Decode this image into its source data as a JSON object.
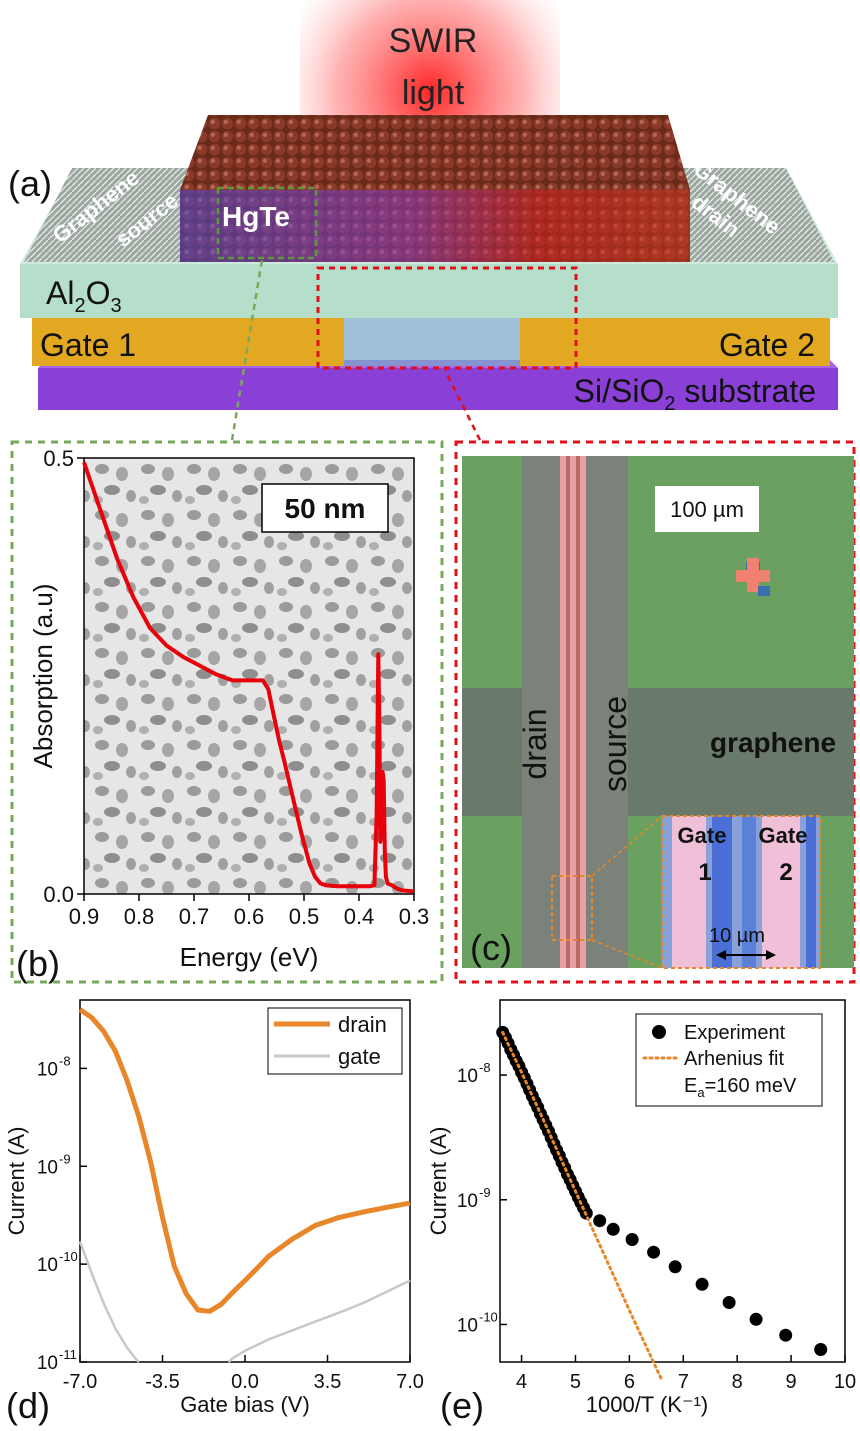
{
  "panel_a": {
    "label": "(a)",
    "light_line1": "SWIR",
    "light_line2": "light",
    "material": "HgTe",
    "graphene_source_1": "Graphene",
    "graphene_source_2": "source",
    "graphene_drain_1": "Graphene",
    "graphene_drain_2": "drain",
    "oxide_main": "Al",
    "oxide_sub1": "2",
    "oxide_mid": "O",
    "oxide_sub2": "3",
    "gate1": "Gate 1",
    "gate2": "Gate 2",
    "substrate_main": "Si/SiO",
    "substrate_sub": "2",
    "substrate_rest": " substrate",
    "colors": {
      "gate": "#e3a822",
      "substrate": "#8a3fd6",
      "oxide": "#a8d8c2",
      "light": "#ff2a2a"
    }
  },
  "panel_b": {
    "label": "(b)",
    "scale_bar": "50 nm",
    "chart_data": {
      "type": "line",
      "xlabel": "Energy (eV)",
      "ylabel": "Absorption (a.u)",
      "xlim": [
        0.9,
        0.3
      ],
      "ylim": [
        0.0,
        0.5
      ],
      "xticks": [
        "0.9",
        "0.8",
        "0.7",
        "0.6",
        "0.5",
        "0.4",
        "0.3"
      ],
      "yticks": [
        "0.0",
        "0.5"
      ],
      "series": [
        {
          "color": "#e8000b",
          "x": [
            0.9,
            0.87,
            0.84,
            0.81,
            0.78,
            0.75,
            0.72,
            0.69,
            0.66,
            0.63,
            0.6,
            0.575,
            0.565,
            0.555,
            0.545,
            0.535,
            0.52,
            0.505,
            0.49,
            0.48,
            0.47,
            0.46,
            0.44,
            0.42,
            0.4,
            0.38,
            0.372,
            0.368,
            0.365,
            0.363,
            0.361,
            0.359,
            0.357,
            0.355,
            0.353,
            0.351,
            0.348,
            0.34,
            0.33,
            0.32,
            0.3
          ],
          "y": [
            0.495,
            0.44,
            0.385,
            0.34,
            0.305,
            0.285,
            0.272,
            0.262,
            0.252,
            0.245,
            0.245,
            0.245,
            0.235,
            0.205,
            0.175,
            0.15,
            0.11,
            0.07,
            0.035,
            0.02,
            0.012,
            0.01,
            0.009,
            0.009,
            0.009,
            0.009,
            0.01,
            0.09,
            0.275,
            0.2,
            0.06,
            0.11,
            0.14,
            0.13,
            0.05,
            0.02,
            0.012,
            0.01,
            0.006,
            0.004,
            0.003
          ]
        }
      ]
    }
  },
  "panel_c": {
    "label": "(c)",
    "scale_bar": "100 µm",
    "drain": "drain",
    "source": "source",
    "graphene": "graphene",
    "inset_gate1_a": "Gate",
    "inset_gate1_b": "1",
    "inset_gate2_a": "Gate",
    "inset_gate2_b": "2",
    "inset_scale": "10 µm"
  },
  "panel_d": {
    "label": "(d)",
    "chart_data": {
      "type": "line",
      "xlabel": "Gate bias (V)",
      "ylabel": "Current (A)",
      "y_scale": "log",
      "xlim": [
        -7.0,
        7.0
      ],
      "ylim": [
        1e-11,
        5e-08
      ],
      "xticks": [
        "-7.0",
        "-3.5",
        "0.0",
        "3.5",
        "7.0"
      ],
      "yticks": [
        "10",
        "10",
        "10",
        "10"
      ],
      "ytick_exps": [
        "-8",
        "-9",
        "-10",
        "-11"
      ],
      "legend_position": "top-right",
      "series": [
        {
          "name": "drain",
          "color": "#e8872a",
          "x": [
            -7.0,
            -6.5,
            -6.0,
            -5.5,
            -5.0,
            -4.5,
            -4.0,
            -3.5,
            -3.0,
            -2.5,
            -2.0,
            -1.5,
            -1.0,
            -0.5,
            0.0,
            0.5,
            1.0,
            2.0,
            3.0,
            4.0,
            5.0,
            6.0,
            7.0
          ],
          "y": [
            4e-08,
            3.3e-08,
            2.4e-08,
            1.5e-08,
            7.5e-09,
            3.2e-09,
            1.1e-09,
            3e-10,
            9.5e-11,
            5e-11,
            3.4e-11,
            3.3e-11,
            3.9e-11,
            5.2e-11,
            6.8e-11,
            9e-11,
            1.2e-10,
            1.8e-10,
            2.5e-10,
            3e-10,
            3.4e-10,
            3.8e-10,
            4.2e-10
          ]
        },
        {
          "name": "gate",
          "color": "#c8c8c8",
          "x": [
            -7.0,
            -6.5,
            -6.0,
            -5.5,
            -5.0,
            -4.6,
            -4.5
          ],
          "y": [
            1.7e-10,
            8e-11,
            4e-11,
            2.2e-11,
            1.4e-11,
            1.05e-11,
            1e-11
          ]
        },
        {
          "name": "",
          "color": "#c8c8c8",
          "x": [
            -0.7,
            -0.5,
            0.0,
            1.0,
            2.0,
            3.0,
            4.0,
            5.0,
            6.0,
            7.0
          ],
          "y": [
            1e-11,
            1.1e-11,
            1.3e-11,
            1.7e-11,
            2.1e-11,
            2.6e-11,
            3.2e-11,
            4e-11,
            5.2e-11,
            6.8e-11
          ]
        }
      ]
    }
  },
  "panel_e": {
    "label": "(e)",
    "legend_fit_line3_main": "E",
    "legend_fit_line3_sub": "a",
    "legend_fit_line3_rest": "=160 meV",
    "chart_data": {
      "type": "scatter",
      "xlabel": "1000/T (K⁻¹)",
      "ylabel": "Current (A)",
      "y_scale": "log",
      "xlim": [
        3.6,
        10.0
      ],
      "ylim": [
        5e-11,
        4e-08
      ],
      "xticks": [
        "4",
        "5",
        "6",
        "7",
        "8",
        "9",
        "10"
      ],
      "yticks": [
        "10",
        "10",
        "10"
      ],
      "ytick_exps": [
        "-8",
        "-9",
        "-10"
      ],
      "legend_position": "top-right",
      "series": [
        {
          "name": "Experiment",
          "color": "#000000",
          "x": [
            3.65,
            3.7,
            3.75,
            3.8,
            3.85,
            3.9,
            3.95,
            4.0,
            4.05,
            4.1,
            4.15,
            4.2,
            4.25,
            4.3,
            4.35,
            4.4,
            4.45,
            4.5,
            4.55,
            4.6,
            4.65,
            4.7,
            4.75,
            4.8,
            4.85,
            4.9,
            4.95,
            5.0,
            5.05,
            5.1,
            5.15,
            5.2,
            5.45,
            5.7,
            6.05,
            6.45,
            6.85,
            7.35,
            7.85,
            8.35,
            8.9,
            9.55
          ],
          "y": [
            2.2e-08,
            2e-08,
            1.8e-08,
            1.6e-08,
            1.45e-08,
            1.3e-08,
            1.18e-08,
            1.05e-08,
            9.5e-09,
            8.5e-09,
            7.6e-09,
            6.8e-09,
            6.1e-09,
            5.5e-09,
            4.9e-09,
            4.4e-09,
            3.95e-09,
            3.55e-09,
            3.15e-09,
            2.8e-09,
            2.5e-09,
            2.25e-09,
            2e-09,
            1.8e-09,
            1.6e-09,
            1.45e-09,
            1.3e-09,
            1.17e-09,
            1.05e-09,
            9.5e-10,
            8.6e-10,
            7.8e-10,
            6.8e-10,
            5.8e-10,
            4.8e-10,
            3.8e-10,
            2.9e-10,
            2.1e-10,
            1.5e-10,
            1.1e-10,
            8.2e-11,
            6.3e-11
          ]
        },
        {
          "name": "Arhenius fit",
          "color": "#e8872a",
          "x": [
            3.65,
            4.0,
            4.5,
            5.0,
            5.5,
            6.0,
            6.6
          ],
          "y": [
            2.2e-08,
            1.05e-08,
            3.55e-09,
            1.17e-09,
            3.9e-10,
            1.3e-10,
            3.6e-11
          ]
        }
      ]
    }
  }
}
